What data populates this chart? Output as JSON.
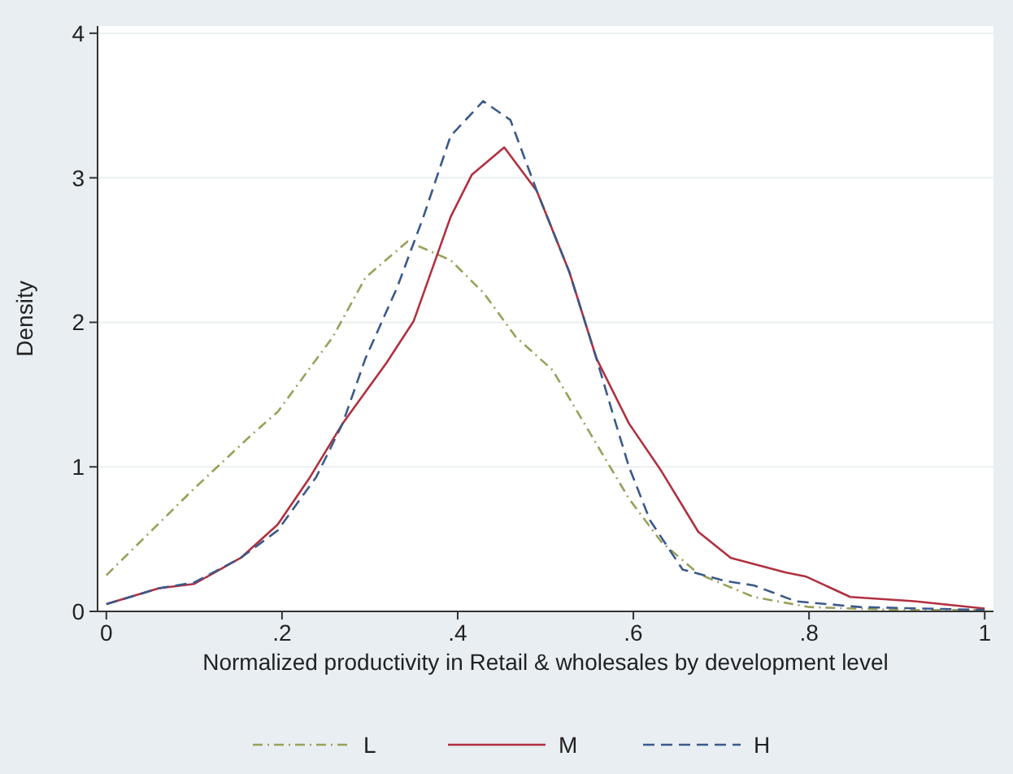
{
  "chart_data": {
    "type": "line",
    "xlabel": "Normalized productivity in Retail & wholesales by development level",
    "ylabel": "Density",
    "xlim": [
      -0.01,
      1.01
    ],
    "ylim": [
      0,
      4.05
    ],
    "xticks": [
      {
        "value": 0,
        "label": "0"
      },
      {
        "value": 0.2,
        "label": ".2"
      },
      {
        "value": 0.4,
        "label": ".4"
      },
      {
        "value": 0.6,
        "label": ".6"
      },
      {
        "value": 0.8,
        "label": ".8"
      },
      {
        "value": 1,
        "label": "1"
      }
    ],
    "yticks": [
      0,
      1,
      2,
      3,
      4
    ],
    "grid": "y",
    "legend": "bottom",
    "series": [
      {
        "name": "L",
        "color": "#9aa05a",
        "line_style": "dashdot",
        "x": [
          0,
          0.05,
          0.1,
          0.165,
          0.195,
          0.258,
          0.295,
          0.343,
          0.392,
          0.43,
          0.466,
          0.508,
          0.552,
          0.595,
          0.632,
          0.674,
          0.737,
          0.8,
          0.9,
          1
        ],
        "values": [
          0.25,
          0.55,
          0.85,
          1.22,
          1.38,
          1.9,
          2.31,
          2.56,
          2.43,
          2.2,
          1.9,
          1.67,
          1.22,
          0.78,
          0.48,
          0.26,
          0.1,
          0.03,
          0.01,
          0.01
        ]
      },
      {
        "name": "M",
        "color": "#b03040",
        "line_style": "solid",
        "x": [
          0,
          0.06,
          0.1,
          0.153,
          0.195,
          0.232,
          0.269,
          0.319,
          0.35,
          0.392,
          0.416,
          0.453,
          0.49,
          0.527,
          0.558,
          0.595,
          0.632,
          0.674,
          0.711,
          0.773,
          0.797,
          0.847,
          0.92,
          1
        ],
        "values": [
          0.05,
          0.16,
          0.19,
          0.37,
          0.6,
          0.93,
          1.3,
          1.72,
          2.01,
          2.73,
          3.02,
          3.21,
          2.91,
          2.35,
          1.75,
          1.3,
          0.97,
          0.55,
          0.37,
          0.27,
          0.24,
          0.1,
          0.07,
          0.02
        ]
      },
      {
        "name": "H",
        "color": "#3a5a8a",
        "line_style": "dashed",
        "x": [
          0,
          0.06,
          0.1,
          0.153,
          0.195,
          0.239,
          0.269,
          0.295,
          0.331,
          0.361,
          0.392,
          0.429,
          0.46,
          0.49,
          0.527,
          0.558,
          0.576,
          0.595,
          0.619,
          0.656,
          0.705,
          0.737,
          0.785,
          0.858,
          1
        ],
        "values": [
          0.05,
          0.16,
          0.2,
          0.37,
          0.56,
          0.93,
          1.3,
          1.75,
          2.24,
          2.73,
          3.29,
          3.53,
          3.4,
          2.91,
          2.35,
          1.75,
          1.38,
          1.0,
          0.63,
          0.29,
          0.21,
          0.18,
          0.07,
          0.03,
          0.01
        ]
      }
    ]
  }
}
